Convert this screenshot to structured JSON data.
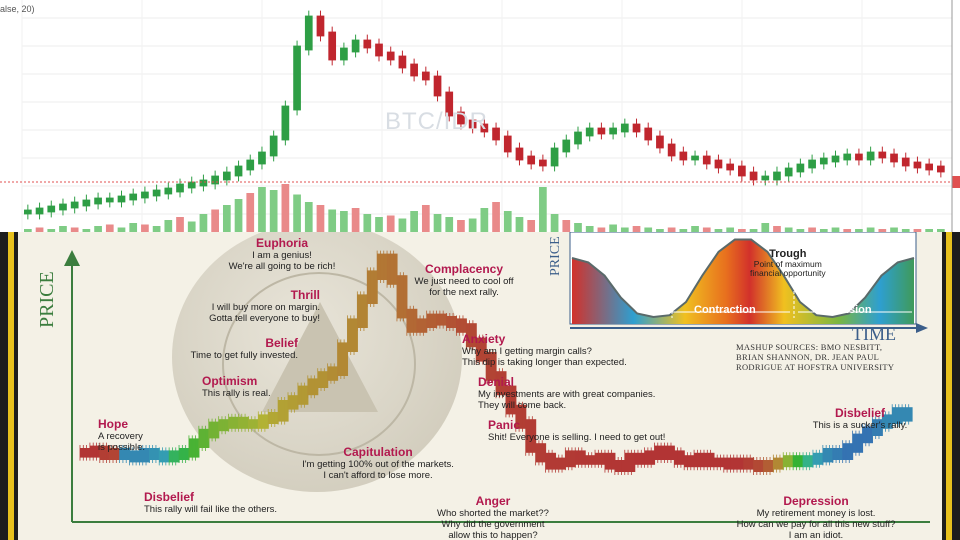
{
  "top_chart": {
    "indicator_text": "alse, 20)",
    "watermark": "BTC/IDR",
    "colors": {
      "up": "#2e9e45",
      "down": "#c0262e",
      "vol_up": "#7fcc85",
      "vol_down": "#e98a8a",
      "price_line": "#e05050"
    }
  },
  "bottom": {
    "price_label": "PRICE",
    "stages": [
      {
        "id": "hope",
        "title": "Hope",
        "lines": [
          "A recovery",
          "is possible."
        ]
      },
      {
        "id": "disbelief1",
        "title": "Disbelief",
        "lines": [
          "This rally will fail like the others."
        ]
      },
      {
        "id": "optimism",
        "title": "Optimism",
        "lines": [
          "This rally is real."
        ]
      },
      {
        "id": "belief",
        "title": "Belief",
        "lines": [
          "Time to get fully invested."
        ]
      },
      {
        "id": "thrill",
        "title": "Thrill",
        "lines": [
          "I will buy more on margin.",
          "Gotta tell everyone to buy!"
        ]
      },
      {
        "id": "euphoria",
        "title": "Euphoria",
        "lines": [
          "I am a genius!",
          "We're all going to be rich!"
        ]
      },
      {
        "id": "complacency",
        "title": "Complacency",
        "lines": [
          "We just need to cool off",
          "for the next rally."
        ]
      },
      {
        "id": "anxiety",
        "title": "Anxiety",
        "lines": [
          "Why am I getting margin calls?",
          "This dip is taking longer than expected."
        ]
      },
      {
        "id": "denial",
        "title": "Denial",
        "lines": [
          "My investments are with great companies.",
          "They will come back."
        ]
      },
      {
        "id": "panic",
        "title": "Panic",
        "lines": [
          "Shit! Everyone is selling. I need to get out!"
        ]
      },
      {
        "id": "capitulation",
        "title": "Capitulation",
        "lines": [
          "I'm getting 100% out of the markets.",
          "I can't afford to lose more."
        ]
      },
      {
        "id": "anger",
        "title": "Anger",
        "lines": [
          "Who shorted the market??",
          "Why did the government",
          "allow this to happen?"
        ]
      },
      {
        "id": "depression",
        "title": "Depression",
        "lines": [
          "My retirement money is lost.",
          "How can we pay for all this new stuff?",
          "I am an idiot."
        ]
      },
      {
        "id": "disbelief2",
        "title": "Disbelief",
        "lines": [
          "This is a sucker's rally."
        ]
      }
    ],
    "sources": [
      "MASHUP SOURCES: BMO NESBITT,",
      "BRIAN SHANNON, DR. JEAN PAUL",
      "RODRIGUE AT HOFSTRA UNIVERSITY"
    ],
    "inset": {
      "price_label": "PRICE",
      "time_label": "TIME",
      "trough_title": "Trough",
      "trough_lines": [
        "Point of maximum",
        "financial opportunity"
      ],
      "contraction": "Contraction",
      "expansion": "Expansion"
    },
    "colors": {
      "title": "#b2194e",
      "axis": "#3b7d3e",
      "frame_gold": "#e7c11e"
    }
  },
  "chart_data": [
    {
      "type": "candlestick",
      "series_name": "BTC/IDR",
      "close_trend": [
        3,
        4,
        5,
        6,
        7,
        8,
        9,
        9,
        10,
        11,
        12,
        13,
        14,
        16,
        17,
        18,
        20,
        22,
        25,
        28,
        32,
        40,
        55,
        85,
        100,
        92,
        80,
        84,
        88,
        86,
        82,
        80,
        76,
        72,
        70,
        62,
        52,
        48,
        46,
        44,
        40,
        34,
        30,
        28,
        27,
        34,
        38,
        42,
        44,
        43,
        44,
        46,
        44,
        40,
        36,
        32,
        30,
        30,
        28,
        26,
        25,
        22,
        20,
        20,
        22,
        24,
        26,
        28,
        29,
        30,
        31,
        30,
        32,
        31,
        29,
        27,
        26,
        25,
        24
      ],
      "volume_trend": [
        2,
        3,
        2,
        4,
        3,
        2,
        4,
        5,
        3,
        6,
        5,
        4,
        8,
        10,
        7,
        12,
        15,
        18,
        22,
        26,
        30,
        28,
        32,
        25,
        20,
        18,
        15,
        14,
        16,
        12,
        10,
        11,
        9,
        14,
        18,
        12,
        10,
        8,
        9,
        16,
        20,
        14,
        10,
        8,
        30,
        12,
        8,
        6,
        4,
        3,
        5,
        3,
        4,
        3,
        2,
        3,
        2,
        4,
        3,
        2,
        3,
        2,
        2,
        6,
        4,
        3,
        2,
        3,
        2,
        3,
        2,
        2,
        3,
        2,
        3,
        2,
        2,
        2,
        2
      ],
      "volume_down_every": 3,
      "current_price_level": 20
    },
    {
      "type": "line",
      "title": "",
      "ylabel": "PRICE",
      "series": [
        {
          "values": [
            18,
            18,
            19,
            17,
            18,
            17,
            16,
            18,
            17,
            16,
            17,
            18,
            22,
            26,
            29,
            30,
            31,
            30,
            30,
            32,
            33,
            38,
            40,
            44,
            47,
            50,
            52,
            62,
            72,
            82,
            92,
            99,
            90,
            76,
            70,
            72,
            74,
            73,
            72,
            70,
            64,
            58,
            50,
            44,
            36,
            30,
            20,
            16,
            13,
            14,
            17,
            15,
            15,
            16,
            13,
            12,
            16,
            15,
            17,
            19,
            17,
            15,
            14,
            16,
            14,
            14,
            13,
            14,
            13,
            12,
            13,
            14,
            15,
            14,
            15,
            16,
            18,
            17,
            20,
            24,
            27,
            30,
            32,
            35,
            33
          ]
        }
      ]
    },
    {
      "type": "area",
      "xlabel": "TIME",
      "ylabel": "PRICE",
      "series": [
        {
          "values": [
            75,
            70,
            55,
            30,
            12,
            8,
            10,
            25,
            55,
            82,
            96,
            96,
            82,
            55,
            25,
            10,
            8,
            12,
            30,
            55,
            70,
            75
          ]
        }
      ]
    }
  ]
}
